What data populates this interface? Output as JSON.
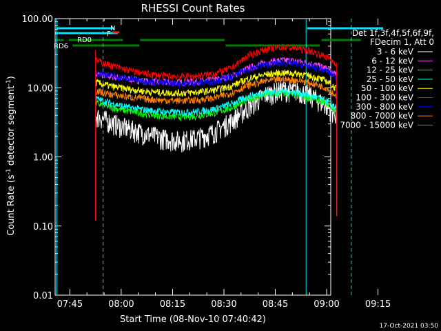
{
  "chart_data": {
    "type": "line",
    "title": "RHESSI Count Rates",
    "xlabel": "Start Time (08-Nov-10 07:40:42)",
    "ylabel_main": "Count Rate (s",
    "ylabel_sup": "-1",
    "ylabel_tail": " detector segment",
    "ylabel_sup2": "-1",
    "ylabel_close": ")",
    "y_log": true,
    "xlim_min": [
      40.7,
      121
    ],
    "ylim": [
      0.01,
      100
    ],
    "x_ticks": [
      {
        "min": 45,
        "label": "07:45"
      },
      {
        "min": 60,
        "label": "08:00"
      },
      {
        "min": 75,
        "label": "08:15"
      },
      {
        "min": 90,
        "label": "08:30"
      },
      {
        "min": 105,
        "label": "08:45"
      },
      {
        "min": 120,
        "label": "09:00"
      },
      {
        "min": 135,
        "label": "09:15"
      }
    ],
    "y_ticks": [
      {
        "value": 100,
        "label": "100.00"
      },
      {
        "value": 10,
        "label": "10.00"
      },
      {
        "value": 1,
        "label": "1.00"
      },
      {
        "value": 0.1,
        "label": "0.10"
      },
      {
        "value": 0.01,
        "label": "0.01"
      }
    ],
    "legend_header": [
      "Det 1f,3f,4f,5f,6f,9f,",
      "FDecim 1, Att 0"
    ],
    "legend_placement": "right",
    "series": [
      {
        "name": "3 - 6 keV",
        "color": "#ffffff",
        "points": [
          [
            52.5,
            4
          ],
          [
            57,
            3.2
          ],
          [
            62,
            2.6
          ],
          [
            67,
            2.2
          ],
          [
            72,
            1.9
          ],
          [
            77,
            1.75
          ],
          [
            82,
            1.9
          ],
          [
            87,
            2.3
          ],
          [
            92,
            3.3
          ],
          [
            97,
            5.2
          ],
          [
            102,
            8
          ],
          [
            107,
            9.5
          ],
          [
            112,
            9
          ],
          [
            116,
            7.5
          ],
          [
            120,
            5.5
          ],
          [
            123,
            4
          ]
        ]
      },
      {
        "name": "6 - 12 keV",
        "color": "#ff40ff",
        "points": [
          [
            52.5,
            16
          ],
          [
            57,
            14.5
          ],
          [
            62,
            13.5
          ],
          [
            67,
            12.5
          ],
          [
            72,
            12
          ],
          [
            77,
            12
          ],
          [
            82,
            12.3
          ],
          [
            87,
            13
          ],
          [
            92,
            14.5
          ],
          [
            97,
            19
          ],
          [
            102,
            23
          ],
          [
            107,
            25
          ],
          [
            112,
            24
          ],
          [
            116,
            22
          ],
          [
            120,
            19
          ],
          [
            123,
            15
          ]
        ]
      },
      {
        "name": "12 - 25 keV",
        "color": "#00ff00",
        "points": [
          [
            52.5,
            6
          ],
          [
            57,
            5.2
          ],
          [
            62,
            4.6
          ],
          [
            67,
            4.2
          ],
          [
            72,
            3.9
          ],
          [
            77,
            3.8
          ],
          [
            82,
            3.9
          ],
          [
            87,
            4.3
          ],
          [
            92,
            5.1
          ],
          [
            97,
            6.8
          ],
          [
            102,
            7.9
          ],
          [
            107,
            8.3
          ],
          [
            112,
            7.8
          ],
          [
            116,
            7
          ],
          [
            120,
            6
          ],
          [
            123,
            4.5
          ]
        ]
      },
      {
        "name": "25 - 50 keV",
        "color": "#00ffff",
        "points": [
          [
            52.5,
            7
          ],
          [
            57,
            6
          ],
          [
            62,
            5.2
          ],
          [
            67,
            4.8
          ],
          [
            72,
            4.5
          ],
          [
            77,
            4.4
          ],
          [
            82,
            4.5
          ],
          [
            87,
            4.9
          ],
          [
            92,
            5.8
          ],
          [
            97,
            7.5
          ],
          [
            102,
            8.5
          ],
          [
            107,
            8.9
          ],
          [
            112,
            8.5
          ],
          [
            116,
            7.5
          ],
          [
            120,
            6.5
          ],
          [
            123,
            5
          ]
        ]
      },
      {
        "name": "50 - 100 keV",
        "color": "#ffff00",
        "points": [
          [
            52.5,
            12
          ],
          [
            57,
            10.5
          ],
          [
            62,
            9.6
          ],
          [
            67,
            8.9
          ],
          [
            72,
            8.5
          ],
          [
            77,
            8.4
          ],
          [
            82,
            8.6
          ],
          [
            87,
            9.2
          ],
          [
            92,
            10.5
          ],
          [
            97,
            13.5
          ],
          [
            102,
            15.5
          ],
          [
            107,
            16.5
          ],
          [
            112,
            16
          ],
          [
            116,
            14.5
          ],
          [
            120,
            12.5
          ],
          [
            123,
            9.5
          ]
        ]
      },
      {
        "name": "100 - 300 keV",
        "color": "#ff0000",
        "points": [
          [
            52.5,
            25
          ],
          [
            57,
            21
          ],
          [
            62,
            18
          ],
          [
            67,
            16
          ],
          [
            72,
            15
          ],
          [
            77,
            14.5
          ],
          [
            82,
            14.8
          ],
          [
            87,
            16
          ],
          [
            92,
            19
          ],
          [
            97,
            29
          ],
          [
            102,
            36
          ],
          [
            107,
            39
          ],
          [
            112,
            37
          ],
          [
            116,
            33
          ],
          [
            120,
            28
          ],
          [
            123,
            22
          ]
        ]
      },
      {
        "name": "300 - 800 keV",
        "color": "#0000ff",
        "points": [
          [
            52.5,
            17
          ],
          [
            57,
            15
          ],
          [
            62,
            13.5
          ],
          [
            67,
            12.5
          ],
          [
            72,
            11.8
          ],
          [
            77,
            11.5
          ],
          [
            82,
            11.7
          ],
          [
            87,
            12.5
          ],
          [
            92,
            14
          ],
          [
            97,
            18.5
          ],
          [
            102,
            21.5
          ],
          [
            107,
            23
          ],
          [
            112,
            22
          ],
          [
            116,
            20
          ],
          [
            120,
            17.5
          ],
          [
            123,
            14
          ]
        ]
      },
      {
        "name": "800 - 7000 keV",
        "color": "#ff8000",
        "points": [
          [
            52.5,
            9
          ],
          [
            57,
            8
          ],
          [
            62,
            7.4
          ],
          [
            67,
            6.9
          ],
          [
            72,
            6.6
          ],
          [
            77,
            6.5
          ],
          [
            82,
            6.6
          ],
          [
            87,
            7.1
          ],
          [
            92,
            8.3
          ],
          [
            97,
            10.8
          ],
          [
            102,
            12.5
          ],
          [
            107,
            13.2
          ],
          [
            112,
            12.8
          ],
          [
            116,
            11.5
          ],
          [
            120,
            10
          ],
          [
            123,
            7.5
          ]
        ]
      },
      {
        "name": "7000 - 15000 keV",
        "color": "#b07020",
        "points": []
      }
    ],
    "attenuator_labels": [
      "RD0",
      "RD6"
    ],
    "orbit_labels": [
      "N",
      "F"
    ],
    "status_bars_color": "#008000",
    "flag_bars_color": "#00e5ff",
    "footer_timestamp": "17-Oct-2021 03:50"
  }
}
